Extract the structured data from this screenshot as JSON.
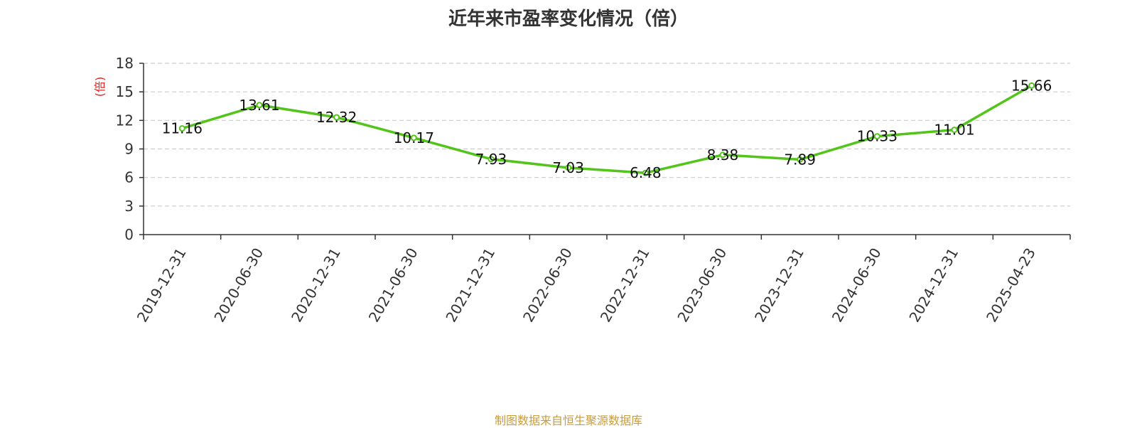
{
  "title": "近年来市盈率变化情况（倍）",
  "source_note": "制图数据来自恒生聚源数据库",
  "chart_data": {
    "type": "line",
    "title": "近年来市盈率变化情况（倍）",
    "ylabel": "(倍)",
    "xlabel": "",
    "categories": [
      "2019-12-31",
      "2020-06-30",
      "2020-12-31",
      "2021-06-30",
      "2021-12-31",
      "2022-06-30",
      "2022-12-31",
      "2023-06-30",
      "2023-12-31",
      "2024-06-30",
      "2024-12-31",
      "2025-04-23"
    ],
    "values": [
      11.16,
      13.61,
      12.32,
      10.17,
      7.93,
      7.03,
      6.48,
      8.38,
      7.89,
      10.33,
      11.01,
      15.66
    ],
    "value_labels": [
      "11.16",
      "13.61",
      "12.32",
      "10.17",
      "7.93",
      "7.03",
      "6.48",
      "8.38",
      "7.89",
      "10.33",
      "11.01",
      "15.66"
    ],
    "ylim": [
      0,
      18
    ],
    "yticks": [
      0,
      3,
      6,
      9,
      12,
      15,
      18
    ],
    "grid": true,
    "grid_style": "dashed",
    "line_color": "#52c41a",
    "ylabel_color": "#e02020",
    "source_color": "#c89b3c"
  }
}
